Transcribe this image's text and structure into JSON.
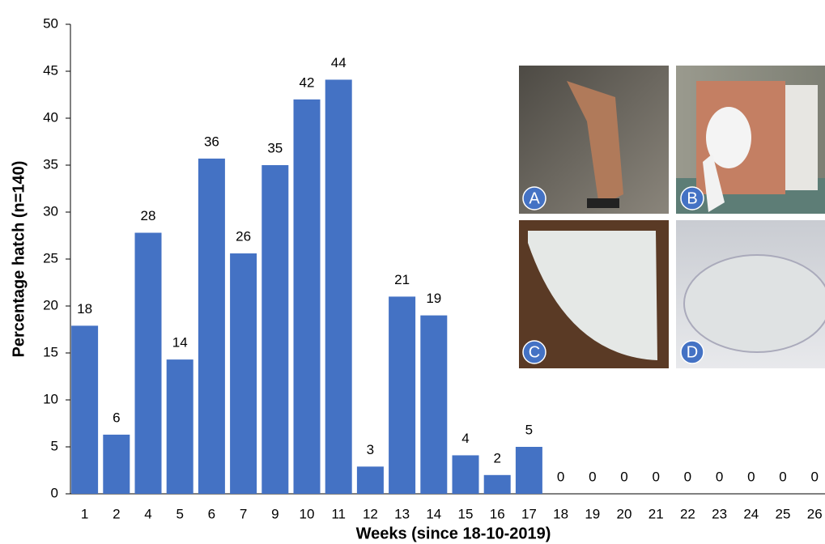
{
  "chart_data": {
    "type": "bar",
    "x_label": "Weeks (since 18-10-2019)",
    "y_label": "Percentage hatch (n=140)",
    "categories": [
      "1",
      "2",
      "4",
      "5",
      "6",
      "7",
      "9",
      "10",
      "11",
      "12",
      "13",
      "14",
      "15",
      "16",
      "17",
      "18",
      "19",
      "20",
      "21",
      "22",
      "23",
      "24",
      "25",
      "26"
    ],
    "values": [
      17.9,
      6.3,
      27.8,
      14.3,
      35.7,
      25.6,
      35,
      42,
      44.1,
      2.9,
      21,
      19,
      4.1,
      2,
      5,
      0,
      0,
      0,
      0,
      0,
      0,
      0,
      0,
      0
    ],
    "value_labels": [
      "18",
      "6",
      "28",
      "14",
      "36",
      "26",
      "35",
      "42",
      "44",
      "3",
      "21",
      "19",
      "4",
      "2",
      "5",
      "0",
      "0",
      "0",
      "0",
      "0",
      "0",
      "0",
      "0",
      "0"
    ],
    "color": "#4472c4",
    "ylim": [
      0,
      50
    ],
    "yticks": [
      0,
      5,
      10,
      15,
      20,
      25,
      30,
      35,
      40,
      45,
      50
    ],
    "grid": false,
    "inset_labels": [
      "A",
      "B",
      "C",
      "D"
    ]
  }
}
